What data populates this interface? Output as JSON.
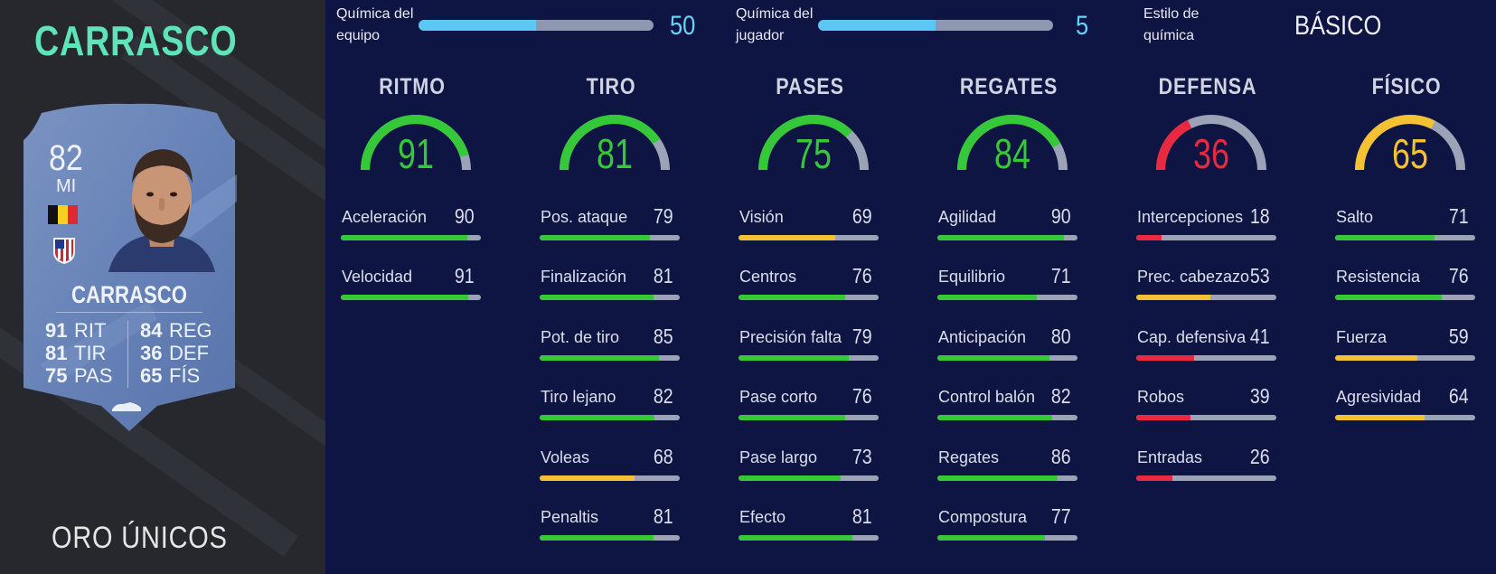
{
  "player": {
    "name": "CARRASCO",
    "card_type": "ORO ÚNICOS",
    "card": {
      "rating": "82",
      "position": "MI",
      "name": "CARRASCO",
      "stats": [
        {
          "value": "91",
          "label": "RIT"
        },
        {
          "value": "81",
          "label": "TIR"
        },
        {
          "value": "75",
          "label": "PAS"
        },
        {
          "value": "84",
          "label": "REG"
        },
        {
          "value": "36",
          "label": "DEF"
        },
        {
          "value": "65",
          "label": "FÍS"
        }
      ]
    }
  },
  "chemistry": {
    "team_label_1": "Química del",
    "team_label_2": "equipo",
    "team_value": "50",
    "team_fill_fraction": 0.5,
    "player_label_1": "Química del",
    "player_label_2": "jugador",
    "player_value": "5",
    "player_fill_fraction": 0.5,
    "style_label_1": "Estilo de",
    "style_label_2": "química",
    "style_value": "BÁSICO"
  },
  "colors": {
    "green": "#35c93a",
    "yellow": "#f3c133",
    "red": "#e8293f",
    "track": "#9ca3b7",
    "chem_blue": "#5cc7f5",
    "name_teal": "#5fe3b8"
  },
  "categories": [
    {
      "title": "RITMO",
      "value": "91",
      "color": "#35c93a",
      "attributes": [
        {
          "name": "Aceleración",
          "value": "90",
          "color": "#35c93a"
        },
        {
          "name": "Velocidad",
          "value": "91",
          "color": "#35c93a"
        }
      ]
    },
    {
      "title": "TIRO",
      "value": "81",
      "color": "#35c93a",
      "attributes": [
        {
          "name": "Pos. ataque",
          "value": "79",
          "color": "#35c93a"
        },
        {
          "name": "Finalización",
          "value": "81",
          "color": "#35c93a"
        },
        {
          "name": "Pot. de tiro",
          "value": "85",
          "color": "#35c93a"
        },
        {
          "name": "Tiro lejano",
          "value": "82",
          "color": "#35c93a"
        },
        {
          "name": "Voleas",
          "value": "68",
          "color": "#f3c133"
        },
        {
          "name": "Penaltis",
          "value": "81",
          "color": "#35c93a"
        }
      ]
    },
    {
      "title": "PASES",
      "value": "75",
      "color": "#35c93a",
      "attributes": [
        {
          "name": "Visión",
          "value": "69",
          "color": "#f3c133"
        },
        {
          "name": "Centros",
          "value": "76",
          "color": "#35c93a"
        },
        {
          "name": "Precisión falta",
          "value": "79",
          "color": "#35c93a"
        },
        {
          "name": "Pase corto",
          "value": "76",
          "color": "#35c93a"
        },
        {
          "name": "Pase largo",
          "value": "73",
          "color": "#35c93a"
        },
        {
          "name": "Efecto",
          "value": "81",
          "color": "#35c93a"
        }
      ]
    },
    {
      "title": "REGATES",
      "value": "84",
      "color": "#35c93a",
      "attributes": [
        {
          "name": "Agilidad",
          "value": "90",
          "color": "#35c93a"
        },
        {
          "name": "Equilibrio",
          "value": "71",
          "color": "#35c93a"
        },
        {
          "name": "Anticipación",
          "value": "80",
          "color": "#35c93a"
        },
        {
          "name": "Control balón",
          "value": "82",
          "color": "#35c93a"
        },
        {
          "name": "Regates",
          "value": "86",
          "color": "#35c93a"
        },
        {
          "name": "Compostura",
          "value": "77",
          "color": "#35c93a"
        }
      ]
    },
    {
      "title": "DEFENSA",
      "value": "36",
      "color": "#e8293f",
      "attributes": [
        {
          "name": "Intercepciones",
          "value": "18",
          "color": "#e8293f"
        },
        {
          "name": "Prec. cabezazo",
          "value": "53",
          "color": "#f3c133"
        },
        {
          "name": "Cap. defensiva",
          "value": "41",
          "color": "#e8293f"
        },
        {
          "name": "Robos",
          "value": "39",
          "color": "#e8293f"
        },
        {
          "name": "Entradas",
          "value": "26",
          "color": "#e8293f"
        }
      ]
    },
    {
      "title": "FÍSICO",
      "value": "65",
      "color": "#f3c133",
      "attributes": [
        {
          "name": "Salto",
          "value": "71",
          "color": "#35c93a"
        },
        {
          "name": "Resistencia",
          "value": "76",
          "color": "#35c93a"
        },
        {
          "name": "Fuerza",
          "value": "59",
          "color": "#f3c133"
        },
        {
          "name": "Agresividad",
          "value": "64",
          "color": "#f3c133"
        }
      ]
    }
  ]
}
